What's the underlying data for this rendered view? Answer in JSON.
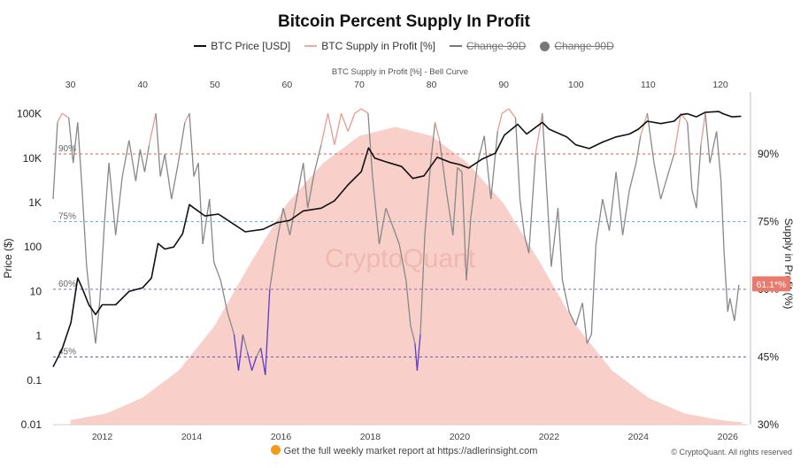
{
  "chart_data": {
    "type": "line",
    "title": "Bitcoin Percent Supply In Profit",
    "top_axis_title": "BTC Supply in Profit [%] - Bell Curve",
    "top_axis_ticks": [
      "30",
      "40",
      "50",
      "60",
      "70",
      "80",
      "90",
      "100",
      "110",
      "120"
    ],
    "xlabel": "",
    "x_ticks": [
      "2012",
      "2014",
      "2016",
      "2018",
      "2020",
      "2022",
      "2024",
      "2026"
    ],
    "ylabel_left": "Price ($)",
    "ylabel_right": "Supply in Profit (%)",
    "y_left_scale": "log",
    "y_left_ticks": [
      "0.01",
      "0.1",
      "1",
      "10",
      "100",
      "1K",
      "10K",
      "100K"
    ],
    "y_right_ticks": [
      "30%",
      "45%",
      "60%",
      "75%",
      "90%"
    ],
    "thresholds": [
      {
        "label": "90%",
        "value": 90,
        "color": "#e05a55"
      },
      {
        "label": "75%",
        "value": 75,
        "color": "#6aaecd"
      },
      {
        "label": "60%",
        "value": 60,
        "color": "#8a6aa8"
      },
      {
        "label": "45%",
        "value": 45,
        "color": "#6a5ab0"
      }
    ],
    "current_value_label": "61.1*%",
    "watermark": "CryptoQuant",
    "legend": [
      {
        "label": "BTC Price [USD]",
        "style": "line",
        "color": "#111111",
        "active": true
      },
      {
        "label": "BTC Supply in Profit [%]",
        "style": "line",
        "color": "#f0a8a0",
        "active": true
      },
      {
        "label": "Change 30D",
        "style": "line",
        "color": "#777777",
        "active": false
      },
      {
        "label": "Change 90D",
        "style": "dot",
        "color": "#777777",
        "active": false
      }
    ],
    "series": [
      {
        "name": "BTC Price [USD]",
        "color": "#111111",
        "points": [
          [
            2010.9,
            0.2
          ],
          [
            2011.1,
            0.5
          ],
          [
            2011.3,
            2
          ],
          [
            2011.45,
            20
          ],
          [
            2011.55,
            12
          ],
          [
            2011.7,
            5
          ],
          [
            2011.85,
            3
          ],
          [
            2012.0,
            5
          ],
          [
            2012.3,
            5
          ],
          [
            2012.6,
            10
          ],
          [
            2012.9,
            12
          ],
          [
            2013.1,
            20
          ],
          [
            2013.25,
            120
          ],
          [
            2013.4,
            90
          ],
          [
            2013.6,
            100
          ],
          [
            2013.8,
            200
          ],
          [
            2013.95,
            900
          ],
          [
            2014.1,
            700
          ],
          [
            2014.3,
            500
          ],
          [
            2014.6,
            550
          ],
          [
            2014.9,
            350
          ],
          [
            2015.2,
            220
          ],
          [
            2015.6,
            250
          ],
          [
            2015.9,
            350
          ],
          [
            2016.2,
            400
          ],
          [
            2016.5,
            650
          ],
          [
            2016.9,
            750
          ],
          [
            2017.2,
            1100
          ],
          [
            2017.5,
            2500
          ],
          [
            2017.8,
            5000
          ],
          [
            2017.96,
            17000
          ],
          [
            2018.1,
            10000
          ],
          [
            2018.4,
            8000
          ],
          [
            2018.7,
            6500
          ],
          [
            2018.95,
            3500
          ],
          [
            2019.2,
            4000
          ],
          [
            2019.5,
            10500
          ],
          [
            2019.8,
            8000
          ],
          [
            2020.0,
            7200
          ],
          [
            2020.2,
            6000
          ],
          [
            2020.5,
            9500
          ],
          [
            2020.8,
            13000
          ],
          [
            2021.0,
            33000
          ],
          [
            2021.3,
            58000
          ],
          [
            2021.5,
            35000
          ],
          [
            2021.85,
            64000
          ],
          [
            2022.0,
            45000
          ],
          [
            2022.4,
            30000
          ],
          [
            2022.6,
            20000
          ],
          [
            2022.9,
            16500
          ],
          [
            2023.2,
            23000
          ],
          [
            2023.5,
            30000
          ],
          [
            2023.8,
            35000
          ],
          [
            2024.0,
            45000
          ],
          [
            2024.2,
            68000
          ],
          [
            2024.5,
            60000
          ],
          [
            2024.8,
            68000
          ],
          [
            2024.95,
            95000
          ],
          [
            2025.1,
            100000
          ],
          [
            2025.3,
            85000
          ],
          [
            2025.5,
            108000
          ],
          [
            2025.8,
            112000
          ],
          [
            2025.9,
            100000
          ],
          [
            2026.1,
            85000
          ],
          [
            2026.3,
            88000
          ]
        ]
      },
      {
        "name": "BTC Supply in Profit [%]",
        "color": "#888888",
        "highlight_color": "#e89a94",
        "low_color": "#5a3fc8",
        "points": [
          [
            2010.9,
            80
          ],
          [
            2011.0,
            97
          ],
          [
            2011.1,
            99
          ],
          [
            2011.25,
            98
          ],
          [
            2011.35,
            88
          ],
          [
            2011.45,
            97
          ],
          [
            2011.55,
            82
          ],
          [
            2011.65,
            65
          ],
          [
            2011.75,
            56
          ],
          [
            2011.85,
            48
          ],
          [
            2011.95,
            58
          ],
          [
            2012.05,
            75
          ],
          [
            2012.15,
            88
          ],
          [
            2012.3,
            72
          ],
          [
            2012.45,
            85
          ],
          [
            2012.6,
            93
          ],
          [
            2012.75,
            84
          ],
          [
            2012.85,
            91
          ],
          [
            2012.95,
            86
          ],
          [
            2013.05,
            92
          ],
          [
            2013.2,
            99
          ],
          [
            2013.3,
            85
          ],
          [
            2013.4,
            90
          ],
          [
            2013.55,
            80
          ],
          [
            2013.7,
            88
          ],
          [
            2013.85,
            97
          ],
          [
            2013.95,
            99
          ],
          [
            2014.05,
            85
          ],
          [
            2014.15,
            88
          ],
          [
            2014.25,
            70
          ],
          [
            2014.4,
            80
          ],
          [
            2014.5,
            66
          ],
          [
            2014.65,
            62
          ],
          [
            2014.8,
            55
          ],
          [
            2014.95,
            50
          ],
          [
            2015.05,
            42
          ],
          [
            2015.15,
            50
          ],
          [
            2015.25,
            46
          ],
          [
            2015.35,
            42
          ],
          [
            2015.45,
            45
          ],
          [
            2015.55,
            47
          ],
          [
            2015.65,
            41
          ],
          [
            2015.75,
            60
          ],
          [
            2015.9,
            70
          ],
          [
            2016.05,
            78
          ],
          [
            2016.2,
            72
          ],
          [
            2016.35,
            80
          ],
          [
            2016.5,
            88
          ],
          [
            2016.6,
            78
          ],
          [
            2016.75,
            86
          ],
          [
            2016.9,
            92
          ],
          [
            2017.05,
            99
          ],
          [
            2017.2,
            92
          ],
          [
            2017.35,
            99
          ],
          [
            2017.5,
            95
          ],
          [
            2017.65,
            99
          ],
          [
            2017.8,
            100
          ],
          [
            2017.95,
            99
          ],
          [
            2018.05,
            85
          ],
          [
            2018.2,
            70
          ],
          [
            2018.35,
            78
          ],
          [
            2018.5,
            74
          ],
          [
            2018.65,
            70
          ],
          [
            2018.8,
            62
          ],
          [
            2018.9,
            52
          ],
          [
            2019.0,
            48
          ],
          [
            2019.05,
            42
          ],
          [
            2019.12,
            50
          ],
          [
            2019.22,
            72
          ],
          [
            2019.35,
            88
          ],
          [
            2019.45,
            97
          ],
          [
            2019.55,
            93
          ],
          [
            2019.7,
            82
          ],
          [
            2019.85,
            72
          ],
          [
            2019.95,
            87
          ],
          [
            2020.05,
            86
          ],
          [
            2020.15,
            62
          ],
          [
            2020.25,
            76
          ],
          [
            2020.4,
            88
          ],
          [
            2020.55,
            94
          ],
          [
            2020.7,
            80
          ],
          [
            2020.85,
            95
          ],
          [
            2020.95,
            99
          ],
          [
            2021.1,
            100
          ],
          [
            2021.25,
            98
          ],
          [
            2021.35,
            80
          ],
          [
            2021.45,
            72
          ],
          [
            2021.55,
            68
          ],
          [
            2021.7,
            90
          ],
          [
            2021.85,
            99
          ],
          [
            2021.95,
            82
          ],
          [
            2022.05,
            65
          ],
          [
            2022.2,
            78
          ],
          [
            2022.3,
            62
          ],
          [
            2022.45,
            55
          ],
          [
            2022.6,
            52
          ],
          [
            2022.75,
            57
          ],
          [
            2022.85,
            48
          ],
          [
            2022.95,
            50
          ],
          [
            2023.05,
            70
          ],
          [
            2023.2,
            80
          ],
          [
            2023.35,
            73
          ],
          [
            2023.5,
            86
          ],
          [
            2023.65,
            72
          ],
          [
            2023.8,
            82
          ],
          [
            2023.95,
            88
          ],
          [
            2024.05,
            94
          ],
          [
            2024.2,
            99
          ],
          [
            2024.35,
            88
          ],
          [
            2024.5,
            80
          ],
          [
            2024.65,
            85
          ],
          [
            2024.8,
            90
          ],
          [
            2024.95,
            99
          ],
          [
            2025.1,
            97
          ],
          [
            2025.2,
            82
          ],
          [
            2025.3,
            78
          ],
          [
            2025.4,
            92
          ],
          [
            2025.5,
            99
          ],
          [
            2025.6,
            88
          ],
          [
            2025.75,
            95
          ],
          [
            2025.85,
            84
          ],
          [
            2025.92,
            68
          ],
          [
            2026.0,
            55
          ],
          [
            2026.05,
            58
          ],
          [
            2026.15,
            53
          ],
          [
            2026.25,
            61
          ]
        ]
      },
      {
        "name": "BTC Supply in Profit [%] - Bell Curve",
        "color": "#f7c8bf",
        "points": [
          [
            30,
            31
          ],
          [
            35,
            32.5
          ],
          [
            40,
            36
          ],
          [
            45,
            42
          ],
          [
            50,
            52
          ],
          [
            55,
            66
          ],
          [
            60,
            79
          ],
          [
            65,
            88
          ],
          [
            70,
            94
          ],
          [
            75,
            96
          ],
          [
            80,
            94
          ],
          [
            85,
            88
          ],
          [
            90,
            79
          ],
          [
            95,
            66
          ],
          [
            100,
            52
          ],
          [
            105,
            42
          ],
          [
            110,
            36
          ],
          [
            115,
            32.5
          ],
          [
            120,
            31
          ],
          [
            123,
            30.5
          ]
        ]
      }
    ]
  },
  "footer": {
    "text": "Get the full weekly market report at ",
    "link": "https://adlerinsight.com"
  },
  "copyright": "© CryptoQuant. All rights reserved"
}
